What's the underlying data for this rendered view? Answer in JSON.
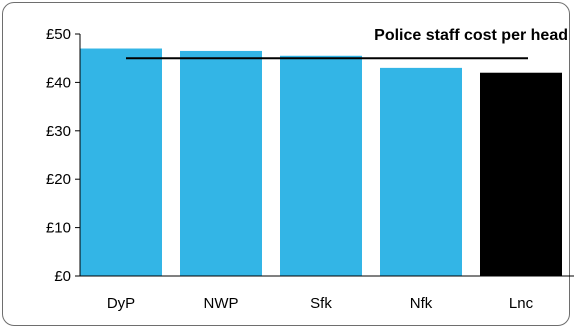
{
  "chart_data": {
    "type": "bar",
    "title": "Police staff cost per head",
    "categories": [
      "DyP",
      "NWP",
      "Sfk",
      "Nfk",
      "Lnc"
    ],
    "values": [
      47,
      46.5,
      45.5,
      43,
      42
    ],
    "bar_colors": [
      "#33b5e6",
      "#33b5e6",
      "#33b5e6",
      "#33b5e6",
      "#000000"
    ],
    "reference_line": 45,
    "reference_line_color": "#000000",
    "ylim": [
      0,
      50
    ],
    "y_ticks": [
      0,
      10,
      20,
      30,
      40,
      50
    ],
    "y_tick_labels": [
      "£0",
      "£10",
      "£20",
      "£30",
      "£40",
      "£50"
    ],
    "xlabel": "",
    "ylabel": "",
    "grid": false,
    "legend": "none"
  }
}
